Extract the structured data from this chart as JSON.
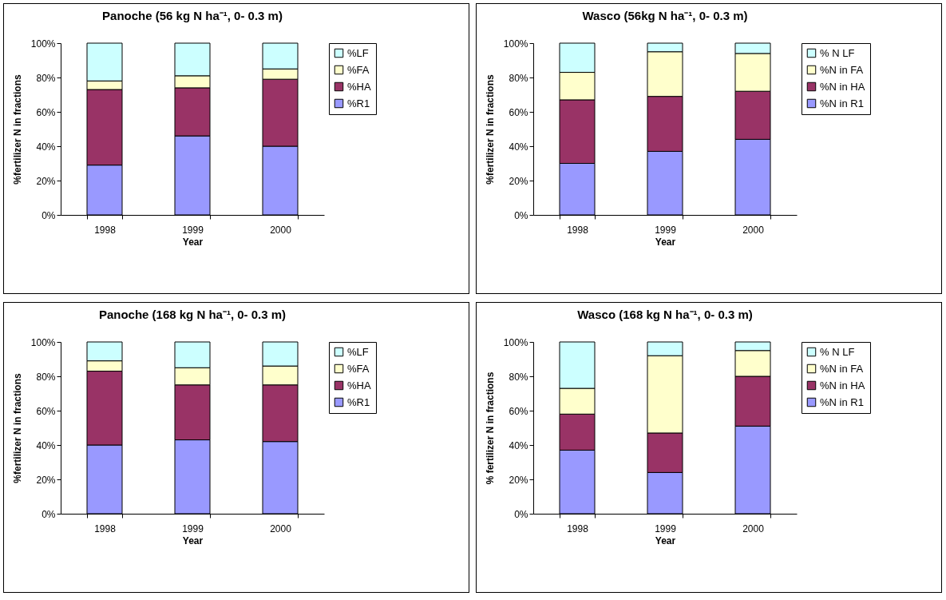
{
  "chart_data": [
    {
      "type": "bar",
      "title": "Panoche (56 kg N ha⁻¹, 0- 0.3 m)",
      "xlabel": "Year",
      "ylabel": "%fertilizer N in fractions",
      "categories": [
        "1998",
        "1999",
        "2000"
      ],
      "stacked": true,
      "legend": "right",
      "ylim": [
        0,
        100
      ],
      "yticks": [
        {
          "value": 0,
          "label": "0%"
        },
        {
          "value": 20,
          "label": "20%"
        },
        {
          "value": 40,
          "label": "40%"
        },
        {
          "value": 60,
          "label": "60%"
        },
        {
          "value": 80,
          "label": "80%"
        },
        {
          "value": 100,
          "label": "100%"
        }
      ],
      "series": [
        {
          "name": "%R1",
          "color": "#9999ff",
          "values": [
            29,
            46,
            40
          ]
        },
        {
          "name": "%HA",
          "color": "#993366",
          "values": [
            44,
            28,
            39
          ]
        },
        {
          "name": "%FA",
          "color": "#ffffcc",
          "values": [
            5,
            7,
            6
          ]
        },
        {
          "name": "%LF",
          "color": "#ccffff",
          "values": [
            22,
            19,
            15
          ]
        }
      ]
    },
    {
      "type": "bar",
      "title": "Wasco (56kg N ha⁻¹, 0- 0.3 m)",
      "xlabel": "Year",
      "ylabel": "%fertilizer N in fractions",
      "categories": [
        "1998",
        "1999",
        "2000"
      ],
      "stacked": true,
      "legend": "right",
      "ylim": [
        0,
        100
      ],
      "yticks": [
        {
          "value": 0,
          "label": "0%"
        },
        {
          "value": 20,
          "label": "20%"
        },
        {
          "value": 40,
          "label": "40%"
        },
        {
          "value": 60,
          "label": "60%"
        },
        {
          "value": 80,
          "label": "80%"
        },
        {
          "value": 100,
          "label": "100%"
        }
      ],
      "series": [
        {
          "name": "%N in R1",
          "color": "#9999ff",
          "values": [
            30,
            37,
            44
          ]
        },
        {
          "name": "%N in HA",
          "color": "#993366",
          "values": [
            37,
            32,
            28
          ]
        },
        {
          "name": "%N in FA",
          "color": "#ffffcc",
          "values": [
            16,
            26,
            22
          ]
        },
        {
          "name": "% N LF",
          "color": "#ccffff",
          "values": [
            17,
            5,
            6
          ]
        }
      ]
    },
    {
      "type": "bar",
      "title": "Panoche (168 kg N ha⁻¹, 0- 0.3 m)",
      "xlabel": "Year",
      "ylabel": "%fertilizer N in fractions",
      "categories": [
        "1998",
        "1999",
        "2000"
      ],
      "stacked": true,
      "legend": "right",
      "ylim": [
        0,
        100
      ],
      "yticks": [
        {
          "value": 0,
          "label": "0%"
        },
        {
          "value": 20,
          "label": "20%"
        },
        {
          "value": 40,
          "label": "40%"
        },
        {
          "value": 60,
          "label": "60%"
        },
        {
          "value": 80,
          "label": "80%"
        },
        {
          "value": 100,
          "label": "100%"
        }
      ],
      "series": [
        {
          "name": "%R1",
          "color": "#9999ff",
          "values": [
            40,
            43,
            42
          ]
        },
        {
          "name": "%HA",
          "color": "#993366",
          "values": [
            43,
            32,
            33
          ]
        },
        {
          "name": "%FA",
          "color": "#ffffcc",
          "values": [
            6,
            10,
            11
          ]
        },
        {
          "name": "%LF",
          "color": "#ccffff",
          "values": [
            11,
            15,
            14
          ]
        }
      ]
    },
    {
      "type": "bar",
      "title": "Wasco (168 kg N ha⁻¹, 0- 0.3 m)",
      "xlabel": "Year",
      "ylabel": "% fertilizer N in fractions",
      "categories": [
        "1998",
        "1999",
        "2000"
      ],
      "stacked": true,
      "legend": "right",
      "ylim": [
        0,
        100
      ],
      "yticks": [
        {
          "value": 0,
          "label": "0%"
        },
        {
          "value": 20,
          "label": "20%"
        },
        {
          "value": 40,
          "label": "40%"
        },
        {
          "value": 60,
          "label": "60%"
        },
        {
          "value": 80,
          "label": "80%"
        },
        {
          "value": 100,
          "label": "100%"
        }
      ],
      "series": [
        {
          "name": "%N in R1",
          "color": "#9999ff",
          "values": [
            37,
            24,
            51
          ]
        },
        {
          "name": "%N in HA",
          "color": "#993366",
          "values": [
            21,
            23,
            29
          ]
        },
        {
          "name": "%N in FA",
          "color": "#ffffcc",
          "values": [
            15,
            45,
            15
          ]
        },
        {
          "name": "% N LF",
          "color": "#ccffff",
          "values": [
            27,
            8,
            5
          ]
        }
      ]
    }
  ]
}
